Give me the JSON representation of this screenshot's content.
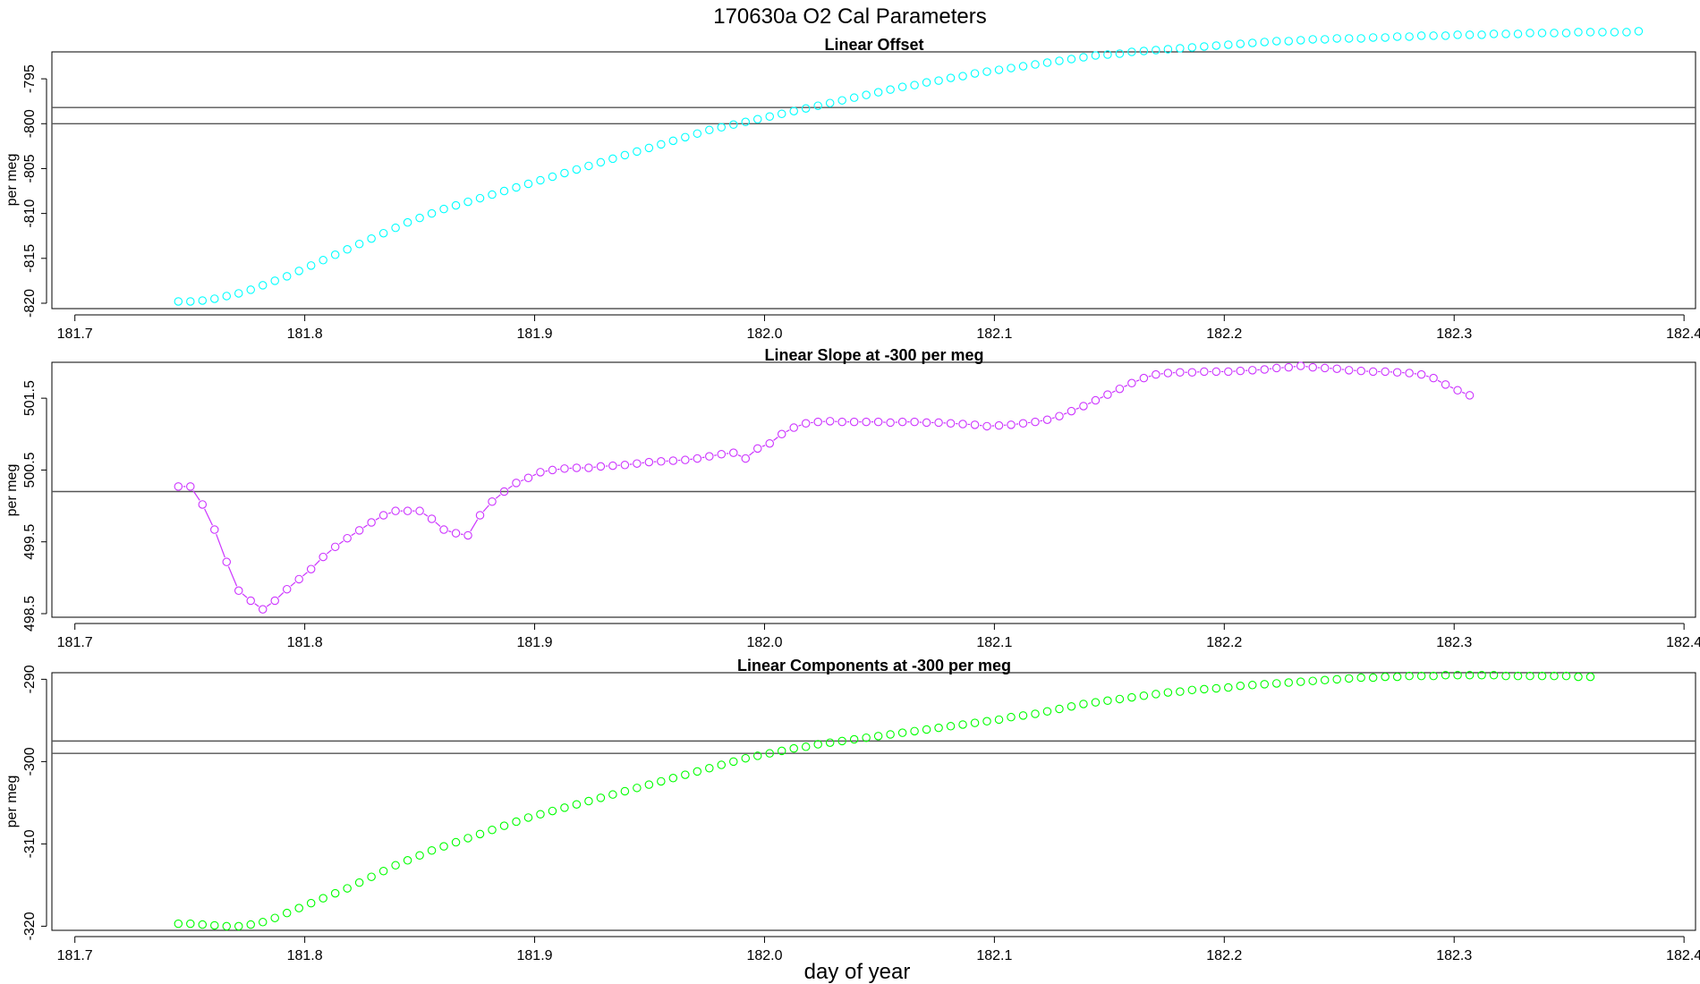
{
  "figure": {
    "title": "170630a   O2 Cal Parameters",
    "xlabel": "day of year"
  },
  "chart_data": [
    {
      "type": "scatter",
      "title": "Linear Offset",
      "ylabel": "per meg",
      "xlabel": "",
      "xlim": [
        181.69,
        182.405
      ],
      "ylim": [
        -820.6,
        -792.0
      ],
      "xticks": [
        181.7,
        181.8,
        181.9,
        182.0,
        182.1,
        182.2,
        182.3,
        182.4
      ],
      "xtick_labels": [
        "181.7",
        "181.8",
        "181.9",
        "182.0",
        "182.1",
        "182.2",
        "182.3",
        "182.4"
      ],
      "yticks": [
        -820,
        -815,
        -810,
        -805,
        -800,
        -795
      ],
      "ytick_labels": [
        "-820",
        "-815",
        "-810",
        "-805",
        "-800",
        "-795"
      ],
      "hlines": [
        -798.2,
        -800.0
      ],
      "color": "#00ffff",
      "line": false,
      "x_start": 181.745,
      "x_step": 0.00525,
      "y": [
        -819.8,
        -819.8,
        -819.7,
        -819.5,
        -819.2,
        -818.9,
        -818.5,
        -818.0,
        -817.5,
        -817.0,
        -816.4,
        -815.8,
        -815.2,
        -814.6,
        -814.0,
        -813.4,
        -812.8,
        -812.2,
        -811.6,
        -811.0,
        -810.5,
        -810.0,
        -809.5,
        -809.1,
        -808.7,
        -808.3,
        -807.9,
        -807.5,
        -807.1,
        -806.7,
        -806.3,
        -805.9,
        -805.5,
        -805.1,
        -804.7,
        -804.3,
        -803.9,
        -803.5,
        -803.1,
        -802.7,
        -802.3,
        -801.9,
        -801.5,
        -801.1,
        -800.7,
        -800.4,
        -800.1,
        -799.8,
        -799.5,
        -799.2,
        -798.9,
        -798.6,
        -798.3,
        -798.0,
        -797.7,
        -797.4,
        -797.1,
        -796.8,
        -796.5,
        -796.2,
        -795.9,
        -795.7,
        -795.4,
        -795.2,
        -794.9,
        -794.7,
        -794.4,
        -794.2,
        -794.0,
        -793.8,
        -793.6,
        -793.4,
        -793.2,
        -793.0,
        -792.8,
        -792.6,
        -792.4,
        -792.3,
        -792.2,
        -792.0,
        -791.9,
        -791.8,
        -791.7,
        -791.6,
        -791.5,
        -791.4,
        -791.3,
        -791.2,
        -791.1,
        -791.0,
        -790.9,
        -790.8,
        -790.8,
        -790.7,
        -790.6,
        -790.6,
        -790.5,
        -790.5,
        -790.5,
        -790.4,
        -790.4,
        -790.3,
        -790.3,
        -790.2,
        -790.2,
        -790.2,
        -790.1,
        -790.1,
        -790.1,
        -790.0,
        -790.0,
        -790.0,
        -789.9,
        -789.9,
        -789.9,
        -789.9,
        -789.8,
        -789.8,
        -789.8,
        -789.8,
        -789.8,
        -789.7,
        -789.7
      ]
    },
    {
      "type": "line",
      "title": "Linear Slope at -300 per meg",
      "ylabel": "per meg",
      "xlabel": "",
      "xlim": [
        181.69,
        182.405
      ],
      "ylim": [
        498.45,
        502.0
      ],
      "xticks": [
        181.7,
        181.8,
        181.9,
        182.0,
        182.1,
        182.2,
        182.3,
        182.4
      ],
      "xtick_labels": [
        "181.7",
        "181.8",
        "181.9",
        "182.0",
        "182.1",
        "182.2",
        "182.3",
        "182.4"
      ],
      "yticks": [
        498.5,
        499.5,
        500.5,
        501.5
      ],
      "ytick_labels": [
        "498.5",
        "499.5",
        "500.5",
        "501.5"
      ],
      "hlines": [
        500.2
      ],
      "color": "#cc33ff",
      "line": true,
      "x_start": 181.745,
      "x_step": 0.00525,
      "y": [
        500.27,
        500.27,
        500.02,
        499.67,
        499.22,
        498.82,
        498.68,
        498.56,
        498.68,
        498.84,
        498.98,
        499.12,
        499.29,
        499.43,
        499.55,
        499.66,
        499.77,
        499.87,
        499.93,
        499.93,
        499.93,
        499.82,
        499.67,
        499.62,
        499.59,
        499.87,
        500.06,
        500.2,
        500.32,
        500.39,
        500.47,
        500.5,
        500.52,
        500.53,
        500.53,
        500.55,
        500.56,
        500.57,
        500.59,
        500.61,
        500.62,
        500.63,
        500.64,
        500.66,
        500.69,
        500.72,
        500.74,
        500.66,
        500.8,
        500.87,
        501.0,
        501.09,
        501.15,
        501.17,
        501.18,
        501.17,
        501.17,
        501.17,
        501.17,
        501.16,
        501.17,
        501.17,
        501.16,
        501.16,
        501.15,
        501.14,
        501.13,
        501.11,
        501.12,
        501.13,
        501.15,
        501.17,
        501.2,
        501.25,
        501.32,
        501.39,
        501.47,
        501.55,
        501.63,
        501.71,
        501.78,
        501.83,
        501.85,
        501.86,
        501.86,
        501.87,
        501.87,
        501.87,
        501.88,
        501.89,
        501.9,
        501.92,
        501.93,
        501.95,
        501.93,
        501.92,
        501.91,
        501.89,
        501.88,
        501.87,
        501.87,
        501.86,
        501.85,
        501.83,
        501.78,
        501.69,
        501.61,
        501.54
      ]
    },
    {
      "type": "scatter",
      "title": "Linear Components at -300 per meg",
      "ylabel": "per meg",
      "xlabel": "",
      "xlim": [
        181.69,
        182.405
      ],
      "ylim": [
        -320.5,
        -289.2
      ],
      "xticks": [
        181.7,
        181.8,
        181.9,
        182.0,
        182.1,
        182.2,
        182.3,
        182.4
      ],
      "xtick_labels": [
        "181.7",
        "181.8",
        "181.9",
        "182.0",
        "182.1",
        "182.2",
        "182.3",
        "182.4"
      ],
      "yticks": [
        -320,
        -310,
        -300,
        -290
      ],
      "ytick_labels": [
        "-320",
        "-310",
        "-300",
        "-290"
      ],
      "hlines": [
        -297.5,
        -299.0
      ],
      "color": "#00ff00",
      "line": false,
      "x_start": 181.745,
      "x_step": 0.00525,
      "y": [
        -319.7,
        -319.7,
        -319.8,
        -319.9,
        -320.0,
        -320.0,
        -319.8,
        -319.5,
        -319.0,
        -318.4,
        -317.8,
        -317.2,
        -316.6,
        -316.0,
        -315.4,
        -314.7,
        -314.0,
        -313.3,
        -312.6,
        -312.0,
        -311.4,
        -310.8,
        -310.3,
        -309.8,
        -309.3,
        -308.8,
        -308.3,
        -307.8,
        -307.3,
        -306.8,
        -306.4,
        -306.0,
        -305.6,
        -305.2,
        -304.8,
        -304.4,
        -304.0,
        -303.6,
        -303.2,
        -302.8,
        -302.4,
        -302.0,
        -301.6,
        -301.2,
        -300.8,
        -300.4,
        -300.0,
        -299.6,
        -299.3,
        -299.0,
        -298.7,
        -298.4,
        -298.2,
        -297.9,
        -297.7,
        -297.5,
        -297.3,
        -297.1,
        -296.9,
        -296.7,
        -296.5,
        -296.3,
        -296.1,
        -295.9,
        -295.7,
        -295.5,
        -295.3,
        -295.1,
        -294.9,
        -294.6,
        -294.4,
        -294.2,
        -293.9,
        -293.6,
        -293.3,
        -293.0,
        -292.8,
        -292.6,
        -292.4,
        -292.2,
        -292.0,
        -291.8,
        -291.6,
        -291.5,
        -291.3,
        -291.2,
        -291.1,
        -291.0,
        -290.8,
        -290.7,
        -290.6,
        -290.5,
        -290.4,
        -290.3,
        -290.2,
        -290.1,
        -290.0,
        -289.9,
        -289.8,
        -289.8,
        -289.7,
        -289.7,
        -289.6,
        -289.6,
        -289.6,
        -289.5,
        -289.5,
        -289.5,
        -289.5,
        -289.5,
        -289.6,
        -289.6,
        -289.6,
        -289.6,
        -289.6,
        -289.6,
        -289.7,
        -289.7
      ]
    }
  ]
}
